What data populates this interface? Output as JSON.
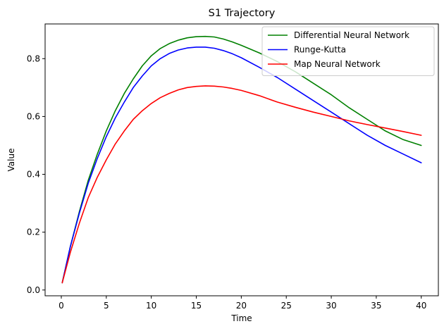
{
  "chart_data": {
    "type": "line",
    "title": "S1 Trajectory",
    "xlabel": "Time",
    "ylabel": "Value",
    "xlim": [
      -1.8,
      41.9
    ],
    "ylim": [
      -0.02,
      0.92
    ],
    "xticks": [
      0,
      5,
      10,
      15,
      20,
      25,
      30,
      35,
      40
    ],
    "yticks": [
      0.0,
      0.2,
      0.4,
      0.6,
      0.8
    ],
    "grid": false,
    "legend_position": "top-right",
    "series": [
      {
        "name": "Differential Neural Network",
        "color": "#008000",
        "x": [
          0.1,
          1,
          2,
          3,
          4,
          5,
          6,
          7,
          8,
          9,
          10,
          11,
          12,
          13,
          14,
          15,
          16,
          17,
          18,
          19,
          20,
          22,
          24,
          26,
          28,
          30,
          32,
          34,
          36,
          38,
          40
        ],
        "y": [
          0.025,
          0.15,
          0.27,
          0.38,
          0.47,
          0.55,
          0.62,
          0.68,
          0.73,
          0.775,
          0.81,
          0.835,
          0.852,
          0.864,
          0.872,
          0.876,
          0.877,
          0.875,
          0.868,
          0.858,
          0.846,
          0.82,
          0.79,
          0.755,
          0.715,
          0.675,
          0.63,
          0.59,
          0.55,
          0.52,
          0.5
        ]
      },
      {
        "name": "Runge-Kutta",
        "color": "#0000ff",
        "x": [
          0.1,
          1,
          2,
          3,
          4,
          5,
          6,
          7,
          8,
          9,
          10,
          11,
          12,
          13,
          14,
          15,
          16,
          17,
          18,
          19,
          20,
          22,
          24,
          26,
          28,
          30,
          32,
          34,
          36,
          38,
          40
        ],
        "y": [
          0.025,
          0.15,
          0.265,
          0.37,
          0.455,
          0.53,
          0.595,
          0.65,
          0.7,
          0.74,
          0.775,
          0.8,
          0.818,
          0.83,
          0.837,
          0.84,
          0.84,
          0.836,
          0.828,
          0.817,
          0.803,
          0.77,
          0.735,
          0.695,
          0.655,
          0.615,
          0.575,
          0.535,
          0.5,
          0.47,
          0.44
        ]
      },
      {
        "name": "Map Neural Network",
        "color": "#ff0000",
        "x": [
          0.1,
          1,
          2,
          3,
          4,
          5,
          6,
          7,
          8,
          9,
          10,
          11,
          12,
          13,
          14,
          15,
          16,
          17,
          18,
          19,
          20,
          22,
          24,
          26,
          28,
          30,
          32,
          34,
          36,
          38,
          40
        ],
        "y": [
          0.025,
          0.13,
          0.23,
          0.32,
          0.39,
          0.45,
          0.505,
          0.55,
          0.59,
          0.62,
          0.645,
          0.665,
          0.68,
          0.692,
          0.7,
          0.704,
          0.706,
          0.705,
          0.702,
          0.697,
          0.69,
          0.672,
          0.65,
          0.632,
          0.615,
          0.6,
          0.585,
          0.572,
          0.56,
          0.548,
          0.535
        ]
      }
    ]
  }
}
